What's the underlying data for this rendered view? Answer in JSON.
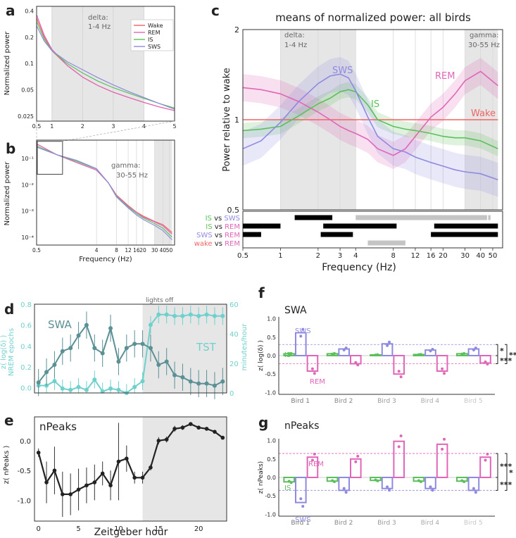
{
  "panel_labels": {
    "a": "a",
    "b": "b",
    "c": "c",
    "d": "d",
    "e": "e",
    "f": "f",
    "g": "g"
  },
  "colors": {
    "wake": "#f06464",
    "rem": "#e066b8",
    "is": "#5cbf5c",
    "sws": "#8f8ae0",
    "swa": "#5b9095",
    "tst": "#6fd0cc",
    "npeaks": "#222222",
    "shade": "#e6e6e6",
    "bird_labels": [
      "#777777",
      "#888888",
      "#999999",
      "#aaaaaa",
      "#c6c6c6"
    ]
  },
  "chart_data": [
    {
      "id": "a",
      "type": "line",
      "ylabel": "Normalized power",
      "yticks": [
        "0.4",
        "0.2",
        "0.1",
        "0.05",
        "0.025"
      ],
      "xticks": [
        "0.5",
        "1",
        "2",
        "3",
        "4",
        "5"
      ],
      "band_label": "delta:\n1-4 Hz",
      "band_label_lines": [
        "delta:",
        "1-4 Hz"
      ],
      "legend": [
        "Wake",
        "REM",
        "IS",
        "SWS"
      ],
      "x": [
        0.5,
        0.75,
        1,
        1.5,
        2,
        2.5,
        3,
        3.5,
        4,
        4.5,
        5
      ],
      "series": [
        {
          "name": "Wake",
          "values": [
            0.33,
            0.2,
            0.14,
            0.095,
            0.07,
            0.056,
            0.047,
            0.041,
            0.036,
            0.032,
            0.029
          ]
        },
        {
          "name": "REM",
          "values": [
            0.36,
            0.21,
            0.145,
            0.095,
            0.07,
            0.056,
            0.047,
            0.041,
            0.036,
            0.032,
            0.029
          ]
        },
        {
          "name": "IS",
          "values": [
            0.3,
            0.19,
            0.14,
            0.1,
            0.078,
            0.063,
            0.053,
            0.046,
            0.04,
            0.035,
            0.031
          ]
        },
        {
          "name": "SWS",
          "values": [
            0.27,
            0.18,
            0.14,
            0.105,
            0.085,
            0.069,
            0.057,
            0.048,
            0.041,
            0.035,
            0.03
          ]
        }
      ]
    },
    {
      "id": "b",
      "type": "line",
      "xlabel": "Frequency (Hz)",
      "ylabel": "Normalized power",
      "yticks": [
        "10⁻¹",
        "10⁻²",
        "10⁻³",
        "10⁻⁴"
      ],
      "xticks": [
        "0.5",
        "4",
        "8",
        "12",
        "16",
        "20",
        "30",
        "40",
        "50"
      ],
      "band_label": "gamma:\n30-55 Hz",
      "band_label_lines": [
        "gamma:",
        "30-55 Hz"
      ],
      "x": [
        0.5,
        1,
        2,
        4,
        6,
        8,
        12,
        16,
        20,
        30,
        40,
        55
      ],
      "series": [
        {
          "name": "Wake",
          "values": [
            0.36,
            0.14,
            0.07,
            0.036,
            0.012,
            0.004,
            0.0016,
            0.0009,
            0.00065,
            0.0004,
            0.0003,
            0.00015
          ]
        },
        {
          "name": "REM",
          "values": [
            0.36,
            0.14,
            0.07,
            0.036,
            0.012,
            0.0038,
            0.0015,
            0.0009,
            0.0006,
            0.00038,
            0.00027,
            0.00013
          ]
        },
        {
          "name": "IS",
          "values": [
            0.3,
            0.14,
            0.078,
            0.04,
            0.012,
            0.0036,
            0.0014,
            0.0008,
            0.00055,
            0.00033,
            0.00022,
            0.0001
          ]
        },
        {
          "name": "SWS",
          "values": [
            0.27,
            0.14,
            0.085,
            0.041,
            0.012,
            0.0034,
            0.0013,
            0.0007,
            0.00048,
            0.00028,
            0.00018,
            8e-05
          ]
        }
      ]
    },
    {
      "id": "c",
      "type": "line",
      "title": "means of normalized power: all birds",
      "xlabel": "Frequency (Hz)",
      "ylabel": "Power relative to wake",
      "ylim": [
        0.5,
        2
      ],
      "yticks": [
        "2",
        "1",
        "0.5"
      ],
      "xticks": [
        "0.5",
        "1",
        "2",
        "3",
        "4",
        "8",
        "12",
        "16",
        "20",
        "30",
        "40",
        "50"
      ],
      "band_labels": {
        "delta": [
          "delta:",
          "1-4 Hz"
        ],
        "gamma": [
          "gamma:",
          "30-55 Hz"
        ]
      },
      "series_labels": {
        "SWS": "SWS",
        "IS": "IS",
        "REM": "REM",
        "Wake": "Wake"
      },
      "x": [
        0.5,
        0.7,
        1,
        1.4,
        2,
        2.5,
        3,
        3.5,
        4,
        5,
        6,
        8,
        10,
        12,
        16,
        20,
        25,
        30,
        40,
        55
      ],
      "series": [
        {
          "name": "Wake",
          "values": [
            1,
            1,
            1,
            1,
            1,
            1,
            1,
            1,
            1,
            1,
            1,
            1,
            1,
            1,
            1,
            1,
            1,
            1,
            1,
            1
          ]
        },
        {
          "name": "REM",
          "values": [
            1.28,
            1.26,
            1.22,
            1.15,
            1.06,
            1.0,
            0.95,
            0.92,
            0.9,
            0.86,
            0.8,
            0.76,
            0.8,
            0.88,
            1.02,
            1.1,
            1.22,
            1.35,
            1.45,
            1.3
          ]
        },
        {
          "name": "IS",
          "values": [
            0.92,
            0.93,
            0.95,
            1.03,
            1.13,
            1.18,
            1.24,
            1.26,
            1.24,
            1.12,
            1.0,
            0.95,
            0.93,
            0.92,
            0.9,
            0.88,
            0.87,
            0.87,
            0.85,
            0.8
          ]
        },
        {
          "name": "SWS",
          "values": [
            0.8,
            0.85,
            0.98,
            1.15,
            1.32,
            1.4,
            1.42,
            1.38,
            1.25,
            1.02,
            0.88,
            0.8,
            0.78,
            0.75,
            0.72,
            0.7,
            0.68,
            0.67,
            0.66,
            0.63
          ]
        }
      ],
      "comparisons": [
        {
          "a": "IS",
          "b": "SWS",
          "vs": "vs",
          "sig": [
            [
              1.3,
              2.6
            ]
          ],
          "ns": [
            [
              4,
              45
            ],
            [
              46,
              48
            ]
          ]
        },
        {
          "a": "IS",
          "b": "REM",
          "vs": "vs",
          "sig": [
            [
              0.5,
              1
            ],
            [
              2.2,
              8.5
            ],
            [
              17,
              55
            ]
          ],
          "ns": []
        },
        {
          "a": "SWS",
          "b": "REM",
          "vs": "vs",
          "sig": [
            [
              0.5,
              0.7
            ],
            [
              2.1,
              3.8
            ],
            [
              16,
              55
            ]
          ],
          "ns": []
        },
        {
          "a": "wake",
          "b": "REM",
          "vs": "vs",
          "sig": [],
          "ns": [
            [
              5,
              10
            ]
          ]
        }
      ]
    },
    {
      "id": "d",
      "type": "line",
      "label_swa": "SWA",
      "label_tst": "TST",
      "lights_off": "lights off",
      "ylabel_left": "z( log(δ) )\nNREM epochs",
      "ylabel_left_lines": [
        "z( log(δ) )",
        "NREM epochs"
      ],
      "ylabel_right": "minutes/hour",
      "yticks_left": [
        "0.0",
        "0.2",
        "0.4",
        "0.6",
        "0.8"
      ],
      "yticks_right": [
        "0",
        "20",
        "40",
        "60"
      ],
      "x": [
        0,
        1,
        2,
        3,
        4,
        5,
        6,
        7,
        8,
        9,
        10,
        11,
        12,
        13,
        14,
        15,
        16,
        17,
        18,
        19,
        20,
        21,
        22,
        23
      ],
      "series": [
        {
          "name": "SWA",
          "axis": "left",
          "values": [
            0.05,
            0.15,
            0.22,
            0.35,
            0.38,
            0.5,
            0.6,
            0.38,
            0.33,
            0.57,
            0.25,
            0.38,
            0.42,
            0.42,
            0.38,
            0.22,
            0.25,
            0.12,
            0.1,
            0.06,
            0.04,
            0.04,
            0.02,
            0.06
          ]
        },
        {
          "name": "TST",
          "axis": "right",
          "values": [
            5,
            5,
            8,
            3,
            2,
            4,
            2,
            9,
            1,
            3,
            2,
            0,
            4,
            8,
            46,
            53,
            53,
            52,
            52,
            53,
            52,
            53,
            52,
            52
          ]
        }
      ]
    },
    {
      "id": "e",
      "type": "line",
      "label": "nPeaks",
      "xlabel": "Zeitgeber hour",
      "ylabel": "z( nPeaks )",
      "yticks": [
        "0.0",
        "-0.5",
        "-1.0"
      ],
      "xticks": [
        "0",
        "5",
        "10",
        "15",
        "20"
      ],
      "x": [
        0,
        1,
        2,
        3,
        4,
        5,
        6,
        7,
        8,
        9,
        10,
        11,
        12,
        13,
        14,
        15,
        16,
        17,
        18,
        19,
        20,
        21,
        22,
        23
      ],
      "series": [
        {
          "name": "nPeaks",
          "values": [
            -0.2,
            -0.7,
            -0.5,
            -0.9,
            -0.9,
            -0.82,
            -0.75,
            -0.7,
            -0.55,
            -0.75,
            -0.35,
            -0.3,
            -0.62,
            -0.62,
            -0.45,
            0.0,
            0.02,
            0.2,
            0.22,
            0.28,
            0.22,
            0.2,
            0.15,
            0.05
          ]
        }
      ]
    },
    {
      "id": "f",
      "type": "bar",
      "label": "SWA",
      "ylabel": "z( log(δ) )",
      "yticks": [
        "1.0",
        "0.5",
        "0.0",
        "-0.5",
        "-1.0"
      ],
      "categories": [
        "Bird 1",
        "Bird 2",
        "Bird 3",
        "Bird 4",
        "Bird 5"
      ],
      "series_labels": {
        "SWS": "SWS",
        "IS": "IS",
        "REM": "REM"
      },
      "series": [
        {
          "name": "IS",
          "values": [
            0.05,
            0.05,
            0.02,
            0.03,
            0.05
          ]
        },
        {
          "name": "SWS",
          "values": [
            0.62,
            0.18,
            0.32,
            0.15,
            0.18
          ]
        },
        {
          "name": "REM",
          "values": [
            -0.42,
            -0.22,
            -0.5,
            -0.42,
            -0.2
          ]
        }
      ],
      "reference_lines": {
        "SWS": 0.3,
        "REM": -0.22
      },
      "significance": [
        "*",
        "***",
        "***"
      ]
    },
    {
      "id": "g",
      "type": "bar",
      "label": "nPeaks",
      "ylabel": "z( nPeaks)",
      "yticks": [
        "1.0",
        "0.5",
        "0.0",
        "-0.5",
        "-1.0"
      ],
      "categories": [
        "Bird 1",
        "Bird 2",
        "Bird 3",
        "Bird 4",
        "Bird 5"
      ],
      "series_labels": {
        "REM": "REM",
        "IS": "IS",
        "SWS": "SWS"
      },
      "series": [
        {
          "name": "IS",
          "values": [
            -0.12,
            -0.1,
            -0.08,
            -0.1,
            -0.1
          ]
        },
        {
          "name": "SWS",
          "values": [
            -0.68,
            -0.35,
            -0.3,
            -0.3,
            -0.35
          ]
        },
        {
          "name": "REM",
          "values": [
            0.55,
            0.5,
            0.98,
            0.9,
            0.55
          ]
        }
      ],
      "reference_lines": {
        "REM": 0.65,
        "SWS": -0.35
      },
      "significance": [
        "***",
        "***",
        "*"
      ]
    }
  ]
}
